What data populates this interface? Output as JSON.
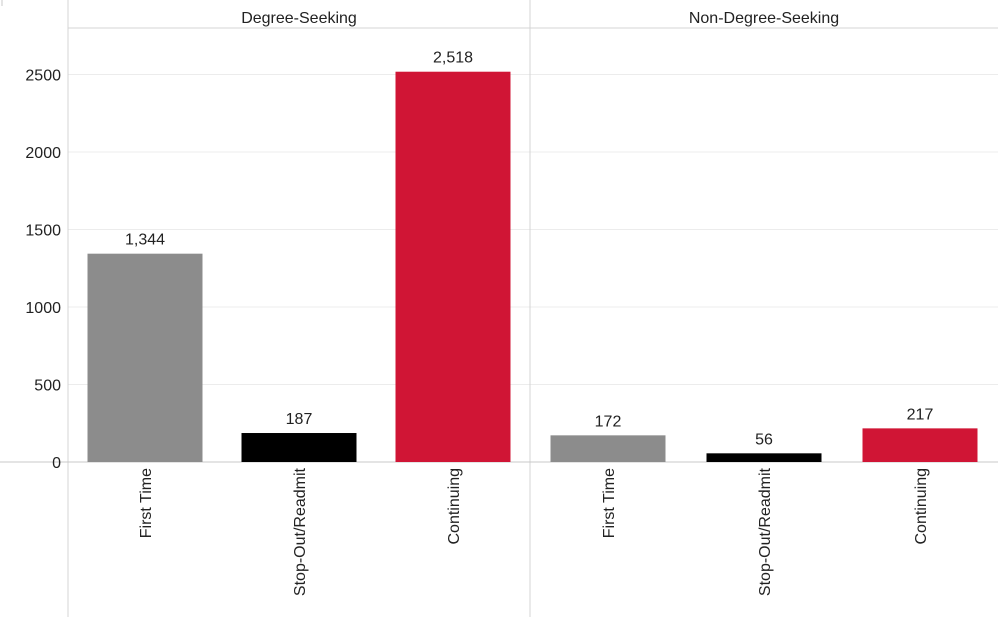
{
  "chart_data": {
    "type": "bar",
    "categories": [
      "First Time",
      "Stop-Out/Readmit",
      "Continuing"
    ],
    "panels": [
      {
        "title": "Degree-Seeking",
        "values": [
          1344,
          187,
          2518
        ],
        "labels": [
          "1,344",
          "187",
          "2,518"
        ]
      },
      {
        "title": "Non-Degree-Seeking",
        "values": [
          172,
          56,
          217
        ],
        "labels": [
          "172",
          "56",
          "217"
        ]
      }
    ],
    "ylim": [
      0,
      2800
    ],
    "yticks": [
      0,
      500,
      1000,
      1500,
      2000,
      2500
    ],
    "ytick_labels": [
      "0",
      "500",
      "1000",
      "1500",
      "2000",
      "2500"
    ],
    "colors": [
      "#8c8c8c",
      "#000000",
      "#d01535"
    ],
    "grid": true,
    "xlabel": "",
    "ylabel": ""
  }
}
